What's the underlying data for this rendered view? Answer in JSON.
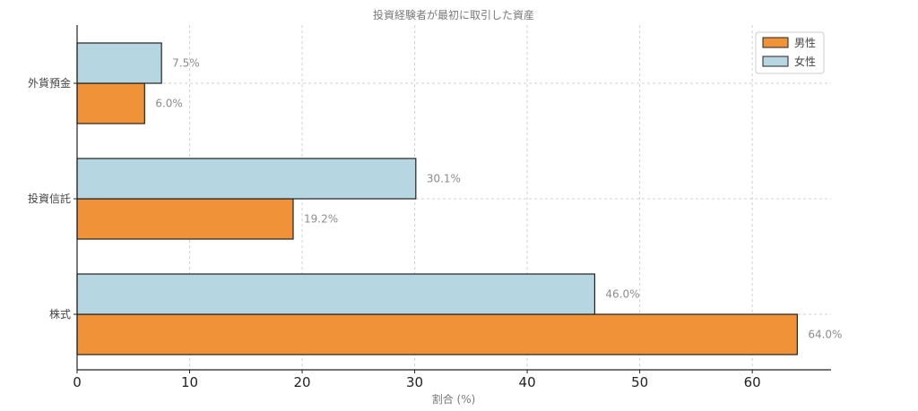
{
  "chart_data": {
    "type": "bar",
    "orientation": "horizontal",
    "title": "投資経験者が最初に取引した資産",
    "xlabel": "割合 (%)",
    "ylabel": "",
    "categories": [
      "外貨預金",
      "投資信託",
      "株式"
    ],
    "series": [
      {
        "name": "男性",
        "values": [
          6.0,
          19.2,
          64.0
        ],
        "labels": [
          "6.0%",
          "19.2%",
          "64.0%"
        ],
        "color": "#f09237"
      },
      {
        "name": "女性",
        "values": [
          7.5,
          30.1,
          46.0
        ],
        "labels": [
          "7.5%",
          "30.1%",
          "46.0%"
        ],
        "color": "#b6d7e2"
      }
    ],
    "xlim": [
      0,
      67
    ],
    "xticks": [
      0,
      10,
      20,
      30,
      40,
      50,
      60
    ],
    "xtick_labels": [
      "0",
      "10",
      "20",
      "30",
      "40",
      "50",
      "60"
    ],
    "grid": true,
    "legend_position": "top-right"
  }
}
